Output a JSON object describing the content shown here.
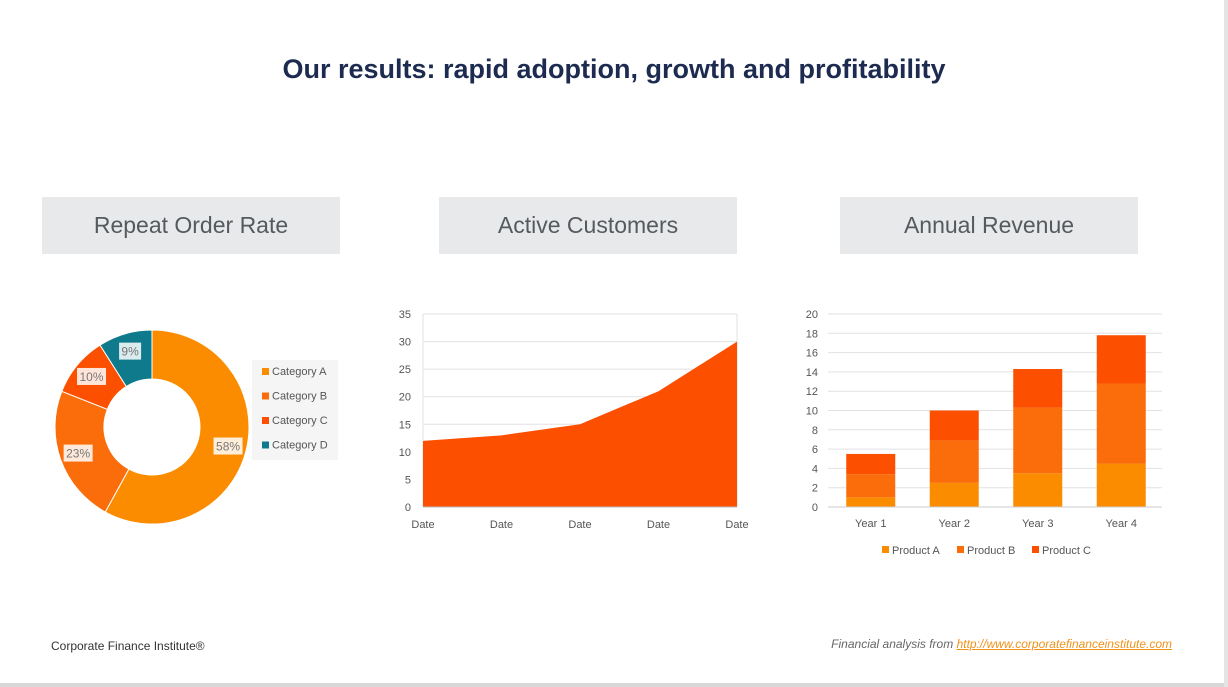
{
  "title": "Our results: rapid adoption, growth and profitability",
  "panels": {
    "donut_title": "Repeat Order Rate",
    "area_title": "Active Customers",
    "bar_title": "Annual Revenue"
  },
  "footer": {
    "brand": "Corporate Finance Institute®",
    "source_prefix": "Financial analysis from ",
    "source_link": "http://www.corporatefinanceinstitute.com"
  },
  "chart_data": [
    {
      "type": "pie",
      "variant": "donut",
      "title": "Repeat Order Rate",
      "categories": [
        "Category A",
        "Category B",
        "Category C",
        "Category D"
      ],
      "values": [
        58,
        23,
        10,
        9
      ],
      "data_labels": [
        "58%",
        "23%",
        "10%",
        "9%"
      ],
      "colors": [
        "#fb8c00",
        "#fa6d0a",
        "#fc4f00",
        "#0e7a8c"
      ],
      "legend": "right"
    },
    {
      "type": "area",
      "title": "Active Customers",
      "x": [
        "Date",
        "Date",
        "Date",
        "Date",
        "Date"
      ],
      "values": [
        12,
        13,
        15,
        21,
        30
      ],
      "ylim": [
        0,
        35
      ],
      "yticks": [
        0,
        5,
        10,
        15,
        20,
        25,
        30,
        35
      ],
      "color": "#fc4f00",
      "grid": true
    },
    {
      "type": "bar",
      "stacked": true,
      "title": "Annual Revenue",
      "categories": [
        "Year 1",
        "Year 2",
        "Year 3",
        "Year 4"
      ],
      "series": [
        {
          "name": "Product A",
          "values": [
            1,
            2.5,
            3.5,
            4.5
          ],
          "color": "#fb8c00"
        },
        {
          "name": "Product B",
          "values": [
            2.4,
            4.4,
            6.8,
            8.3
          ],
          "color": "#fa6d0a"
        },
        {
          "name": "Product C",
          "values": [
            2.1,
            3.1,
            4,
            5
          ],
          "color": "#fc4f00"
        }
      ],
      "ylim": [
        0,
        20
      ],
      "yticks": [
        0,
        2,
        4,
        6,
        8,
        10,
        12,
        14,
        16,
        18,
        20
      ],
      "legend": "bottom",
      "grid": true
    }
  ]
}
